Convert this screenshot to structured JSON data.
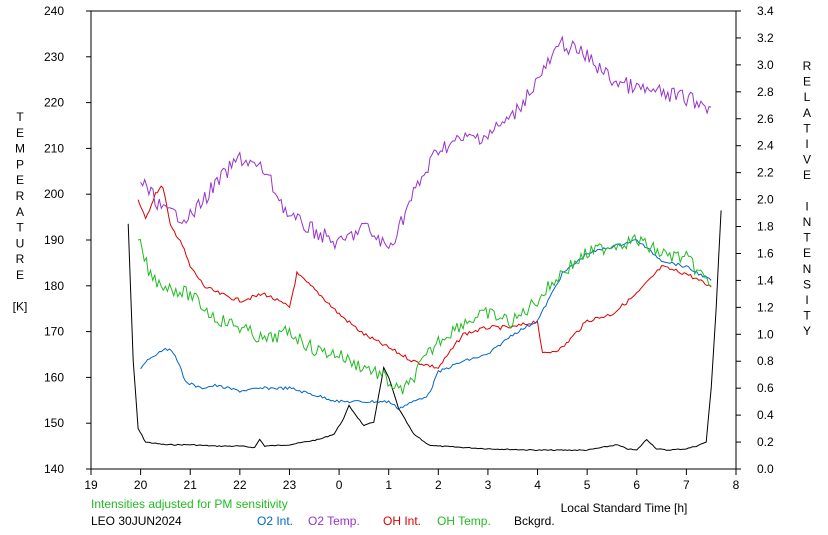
{
  "chart_data": {
    "type": "line",
    "left_axis_label": [
      "T",
      "E",
      "M",
      "P",
      "E",
      "R",
      "A",
      "T",
      "U",
      "R",
      "E",
      "",
      "[K]"
    ],
    "right_axis_label": [
      "R",
      "E",
      "L",
      "A",
      "T",
      "I",
      "V",
      "E",
      "",
      "I",
      "N",
      "T",
      "E",
      "N",
      "S",
      "I",
      "T",
      "Y"
    ],
    "x_axis_label": "Local Standard Time [h]",
    "x_ticks": [
      "19",
      "20",
      "21",
      "22",
      "23",
      "0",
      "1",
      "2",
      "3",
      "4",
      "5",
      "6",
      "7",
      "8"
    ],
    "x_range_hours": [
      19,
      32
    ],
    "left_ticks": [
      "140",
      "150",
      "160",
      "170",
      "180",
      "190",
      "200",
      "210",
      "220",
      "230",
      "240"
    ],
    "left_range": [
      140,
      240
    ],
    "right_ticks": [
      "0.0",
      "0.2",
      "0.4",
      "0.6",
      "0.8",
      "1.0",
      "1.2",
      "1.4",
      "1.6",
      "1.8",
      "2.0",
      "2.2",
      "2.4",
      "2.6",
      "2.8",
      "3.0",
      "3.2",
      "3.4"
    ],
    "right_range": [
      0,
      3.4
    ],
    "note": "Intensities adjusted for PM sensitivity",
    "station_date": "LEO 30JUN2024",
    "legend": [
      {
        "label": "O2 Int.",
        "color": "#0066cc"
      },
      {
        "label": "O2 Temp.",
        "color": "#9933cc"
      },
      {
        "label": "OH Int.",
        "color": "#dd0000"
      },
      {
        "label": "OH Temp.",
        "color": "#22bb22"
      },
      {
        "label": "Bckgrd.",
        "color": "#000000"
      }
    ],
    "series": [
      {
        "name": "Bckgrd.",
        "axis": "right",
        "color": "#000000",
        "x": [
          19.75,
          19.85,
          19.95,
          20.1,
          20.5,
          21,
          21.5,
          22,
          22.3,
          22.4,
          22.5,
          23,
          23.3,
          23.6,
          23.9,
          24.1,
          24.2,
          24.3,
          24.5,
          24.7,
          24.8,
          24.9,
          25.0,
          25.2,
          25.5,
          25.8,
          26,
          26.5,
          27,
          28,
          29,
          29.6,
          29.8,
          30,
          30.2,
          30.4,
          30.6,
          31,
          31.2,
          31.4,
          31.5,
          31.6,
          31.7
        ],
        "y": [
          1.82,
          0.8,
          0.3,
          0.2,
          0.18,
          0.18,
          0.17,
          0.17,
          0.16,
          0.22,
          0.17,
          0.18,
          0.2,
          0.22,
          0.26,
          0.38,
          0.47,
          0.42,
          0.32,
          0.35,
          0.55,
          0.75,
          0.68,
          0.45,
          0.26,
          0.18,
          0.17,
          0.16,
          0.15,
          0.14,
          0.14,
          0.18,
          0.15,
          0.14,
          0.22,
          0.15,
          0.14,
          0.15,
          0.17,
          0.2,
          0.6,
          1.2,
          1.92
        ]
      },
      {
        "name": "OH Int.",
        "axis": "right",
        "color": "#dd0000",
        "x": [
          19.95,
          20.1,
          20.3,
          20.45,
          20.6,
          20.8,
          21,
          21.3,
          21.6,
          22,
          22.5,
          23,
          23.15,
          23.3,
          23.6,
          24,
          24.5,
          25,
          25.5,
          26,
          26.5,
          27,
          27.5,
          28,
          28.1,
          28.5,
          29,
          29.5,
          30,
          30.5,
          31,
          31.5
        ],
        "y": [
          2.0,
          1.85,
          2.05,
          2.1,
          1.8,
          1.7,
          1.5,
          1.35,
          1.3,
          1.25,
          1.3,
          1.2,
          1.45,
          1.4,
          1.3,
          1.15,
          1.0,
          0.9,
          0.8,
          0.75,
          1.0,
          1.05,
          1.05,
          1.1,
          0.85,
          0.9,
          1.1,
          1.15,
          1.3,
          1.5,
          1.45,
          1.35
        ]
      },
      {
        "name": "O2 Int.",
        "axis": "right",
        "color": "#0066cc",
        "x": [
          20,
          20.1,
          20.3,
          20.5,
          20.7,
          20.9,
          21.2,
          21.5,
          22,
          22.5,
          23,
          23.5,
          24,
          24.5,
          25,
          25.2,
          25.5,
          25.8,
          26,
          26.5,
          27,
          27.5,
          28,
          28.5,
          29,
          29.5,
          30,
          30.5,
          31,
          31.5
        ],
        "y": [
          0.75,
          0.8,
          0.85,
          0.9,
          0.85,
          0.65,
          0.6,
          0.62,
          0.58,
          0.6,
          0.6,
          0.55,
          0.5,
          0.5,
          0.5,
          0.45,
          0.5,
          0.55,
          0.72,
          0.8,
          0.85,
          1.0,
          1.1,
          1.45,
          1.6,
          1.65,
          1.7,
          1.55,
          1.5,
          1.4
        ]
      },
      {
        "name": "OH Temp.",
        "axis": "left",
        "color": "#22bb22",
        "x": [
          19.95,
          20.2,
          20.5,
          21,
          21.5,
          22,
          22.5,
          23,
          23.5,
          24,
          24.3,
          24.6,
          24.9,
          25.2,
          25.4,
          25.6,
          26,
          26.5,
          27,
          27.5,
          28,
          28.5,
          29,
          29.5,
          30,
          30.5,
          31,
          31.5
        ],
        "y": [
          190,
          182,
          180,
          178,
          173,
          171,
          168,
          170,
          166,
          165,
          163,
          162,
          160,
          157,
          158,
          162,
          168,
          172,
          174,
          172,
          177,
          183,
          187,
          189,
          190,
          187,
          186,
          180
        ]
      },
      {
        "name": "O2 Temp.",
        "axis": "left",
        "color": "#9933cc",
        "x": [
          20,
          20.5,
          21,
          21.5,
          22,
          22.5,
          23,
          23.5,
          24,
          24.5,
          25,
          25.5,
          26,
          26.5,
          27,
          27.5,
          28,
          28.5,
          29,
          29.5,
          30,
          30.5,
          31,
          31.5
        ],
        "y": [
          203,
          196,
          195,
          202,
          208,
          205,
          195,
          192,
          189,
          193,
          188,
          200,
          210,
          212,
          213,
          217,
          225,
          233,
          230,
          225,
          223,
          222,
          221,
          219
        ]
      }
    ]
  }
}
